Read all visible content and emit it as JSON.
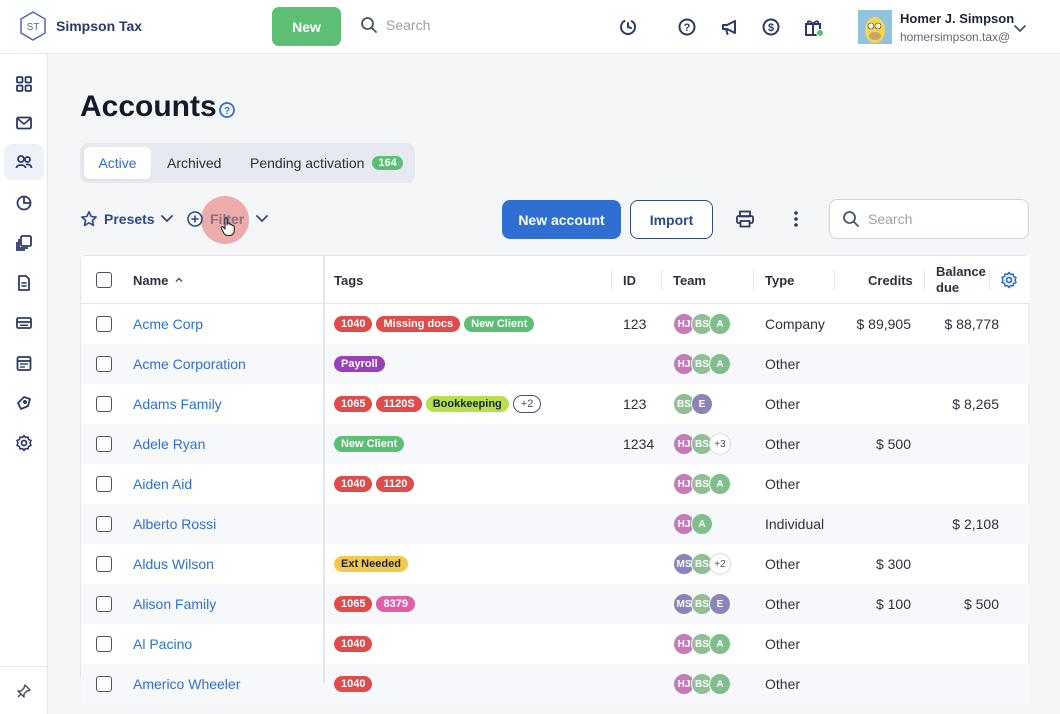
{
  "app": {
    "logo_initials": "ST",
    "name": "Simpson Tax",
    "new_label": "New",
    "search_placeholder": "Search",
    "user": {
      "name": "Homer J. Simpson",
      "email": "homersimpson.tax@"
    }
  },
  "top_icons": [
    "clock-icon",
    "help-icon",
    "megaphone-icon",
    "dollar-icon",
    "gift-icon"
  ],
  "sidebar": {
    "items": [
      "dashboard-icon",
      "inbox-icon",
      "accounts-icon",
      "insights-icon",
      "documents-icon",
      "organizers-icon",
      "billing-icon",
      "calendar-icon",
      "templates-icon",
      "settings-icon"
    ],
    "active": "accounts-icon"
  },
  "page": {
    "title": "Accounts",
    "tabs": [
      {
        "label": "Active"
      },
      {
        "label": "Archived"
      },
      {
        "label": "Pending activation",
        "badge": "164"
      }
    ],
    "presets_label": "Presets",
    "filter_label": "Filter",
    "new_account_label": "New account",
    "import_label": "Import",
    "search_placeholder": "Search"
  },
  "table": {
    "columns": {
      "name": "Name",
      "tags": "Tags",
      "id": "ID",
      "team": "Team",
      "type": "Type",
      "credits": "Credits",
      "balance_line1": "Balance",
      "balance_line2": "due"
    },
    "rows": [
      {
        "name": "Acme Corp",
        "tags": [
          {
            "t": "1040",
            "c": "#e04b4b"
          },
          {
            "t": "Missing docs",
            "c": "#e04b4b"
          },
          {
            "t": "New Client",
            "c": "#5cbf73"
          }
        ],
        "id": "123",
        "team": [
          {
            "i": "HJ",
            "c": "#c47bb8"
          },
          {
            "i": "BS",
            "c": "#8fbf92"
          },
          {
            "i": "A",
            "c": "#7fbf8a"
          }
        ],
        "type": "Company",
        "credits": "$ 89,905",
        "balance": "$ 88,778"
      },
      {
        "name": "Acme Corporation",
        "tags": [
          {
            "t": "Payroll",
            "c": "#9b3fb8"
          }
        ],
        "id": "",
        "team": [
          {
            "i": "HJ",
            "c": "#c47bb8"
          },
          {
            "i": "BS",
            "c": "#8fbf92"
          },
          {
            "i": "A",
            "c": "#7fbf8a"
          }
        ],
        "type": "Other",
        "credits": "",
        "balance": ""
      },
      {
        "name": "Adams Family",
        "tags": [
          {
            "t": "1065",
            "c": "#e04b4b"
          },
          {
            "t": "1120S",
            "c": "#e04b4b"
          },
          {
            "t": "Bookkeeping",
            "c": "#b8e04b",
            "dark": true
          },
          {
            "t": "+2",
            "plus": true
          }
        ],
        "id": "123",
        "team": [
          {
            "i": "BS",
            "c": "#8fbf92"
          },
          {
            "i": "E",
            "c": "#8b84b8"
          }
        ],
        "type": "Other",
        "credits": "",
        "balance": "$ 8,265"
      },
      {
        "name": "Adele Ryan",
        "tags": [
          {
            "t": "New Client",
            "c": "#5cbf73"
          }
        ],
        "id": "1234",
        "team": [
          {
            "i": "HJ",
            "c": "#c47bb8"
          },
          {
            "i": "BS",
            "c": "#8fbf92"
          },
          {
            "i": "+3",
            "more": true
          }
        ],
        "type": "Other",
        "credits": "$ 500",
        "balance": ""
      },
      {
        "name": "Aiden Aid",
        "tags": [
          {
            "t": "1040",
            "c": "#e04b4b"
          },
          {
            "t": "1120",
            "c": "#e04b4b"
          }
        ],
        "id": "",
        "team": [
          {
            "i": "HJ",
            "c": "#c47bb8"
          },
          {
            "i": "BS",
            "c": "#8fbf92"
          },
          {
            "i": "A",
            "c": "#7fbf8a"
          }
        ],
        "type": "Other",
        "credits": "",
        "balance": ""
      },
      {
        "name": "Alberto Rossi",
        "tags": [],
        "id": "",
        "team": [
          {
            "i": "HJ",
            "c": "#c47bb8"
          },
          {
            "i": "A",
            "c": "#7fbf8a"
          }
        ],
        "type": "Individual",
        "credits": "",
        "balance": "$ 2,108"
      },
      {
        "name": "Aldus Wilson",
        "tags": [
          {
            "t": "Ext Needed",
            "c": "#f2c94c",
            "dark": true
          }
        ],
        "id": "",
        "team": [
          {
            "i": "MS",
            "c": "#8b84b8"
          },
          {
            "i": "BS",
            "c": "#8fbf92"
          },
          {
            "i": "+2",
            "more": true
          }
        ],
        "type": "Other",
        "credits": "$ 300",
        "balance": ""
      },
      {
        "name": "Alison Family",
        "tags": [
          {
            "t": "1065",
            "c": "#e04b4b"
          },
          {
            "t": "8379",
            "c": "#e05fa8"
          }
        ],
        "id": "",
        "team": [
          {
            "i": "MS",
            "c": "#8b84b8"
          },
          {
            "i": "BS",
            "c": "#8fbf92"
          },
          {
            "i": "E",
            "c": "#8b84b8"
          }
        ],
        "type": "Other",
        "credits": "$ 100",
        "balance": "$ 500"
      },
      {
        "name": "Al Pacino",
        "tags": [
          {
            "t": "1040",
            "c": "#e04b4b"
          }
        ],
        "id": "",
        "team": [
          {
            "i": "HJ",
            "c": "#c47bb8"
          },
          {
            "i": "BS",
            "c": "#8fbf92"
          },
          {
            "i": "A",
            "c": "#7fbf8a"
          }
        ],
        "type": "Other",
        "credits": "",
        "balance": ""
      },
      {
        "name": "Americo Wheeler",
        "tags": [
          {
            "t": "1040",
            "c": "#e04b4b"
          }
        ],
        "id": "",
        "team": [
          {
            "i": "HJ",
            "c": "#c47bb8"
          },
          {
            "i": "BS",
            "c": "#8fbf92"
          },
          {
            "i": "A",
            "c": "#7fbf8a"
          }
        ],
        "type": "Other",
        "credits": "",
        "balance": ""
      }
    ]
  }
}
